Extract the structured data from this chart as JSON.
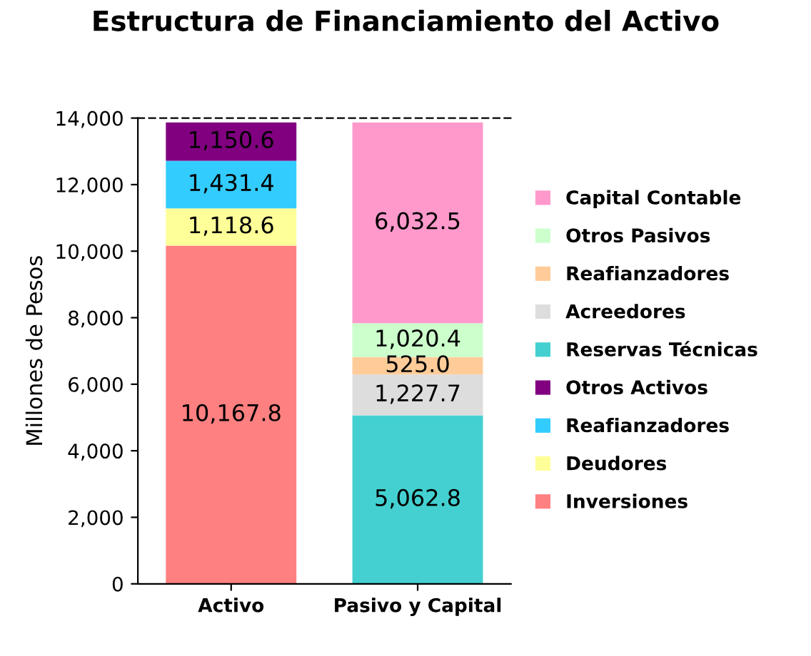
{
  "chart_data": {
    "type": "bar",
    "stacked": true,
    "title": "Estructura de Financiamiento del Activo",
    "ylabel": "Millones de Pesos",
    "categories": [
      "Activo",
      "Pasivo y Capital"
    ],
    "ylim": [
      0,
      14000
    ],
    "yticks": [
      0,
      {
        "value": 2000,
        "label": "2,000"
      },
      {
        "value": 4000,
        "label": "4,000"
      },
      {
        "value": 6000,
        "label": "6,000"
      },
      {
        "value": 8000,
        "label": "8,000"
      },
      {
        "value": 10000,
        "label": "10,000"
      },
      {
        "value": 12000,
        "label": "12,000"
      },
      {
        "value": 14000,
        "label": "14,000"
      }
    ],
    "legend": "right",
    "series": [
      {
        "name": "Inversiones",
        "color": "#ff8080",
        "values": [
          10167.8,
          null
        ],
        "value_labels": [
          "10,167.8",
          null
        ]
      },
      {
        "name": "Deudores",
        "color": "#ffff99",
        "values": [
          1118.6,
          null
        ],
        "value_labels": [
          "1,118.6",
          null
        ]
      },
      {
        "name": "Reafianzadores",
        "color": "#33ccff",
        "values": [
          1431.4,
          null
        ],
        "value_labels": [
          "1,431.4",
          null
        ]
      },
      {
        "name": "Otros Activos",
        "color": "#800080",
        "values": [
          1150.6,
          null
        ],
        "value_labels": [
          "1,150.6",
          null
        ]
      },
      {
        "name": "Reservas Técnicas",
        "color": "#44d0d0",
        "values": [
          null,
          5062.8
        ],
        "value_labels": [
          null,
          "5,062.8"
        ]
      },
      {
        "name": "Acreedores",
        "color": "#dddddd",
        "values": [
          null,
          1227.7
        ],
        "value_labels": [
          null,
          "1,227.7"
        ]
      },
      {
        "name": "Reafianzadores",
        "color": "#ffcc99",
        "values": [
          null,
          525.0
        ],
        "value_labels": [
          null,
          "525.0"
        ]
      },
      {
        "name": "Otros Pasivos",
        "color": "#ccffcc",
        "values": [
          null,
          1020.4
        ],
        "value_labels": [
          null,
          "1,020.4"
        ]
      },
      {
        "name": "Capital Contable",
        "color": "#ff99cc",
        "values": [
          null,
          6032.5
        ],
        "value_labels": [
          null,
          "6,032.5"
        ]
      }
    ]
  }
}
